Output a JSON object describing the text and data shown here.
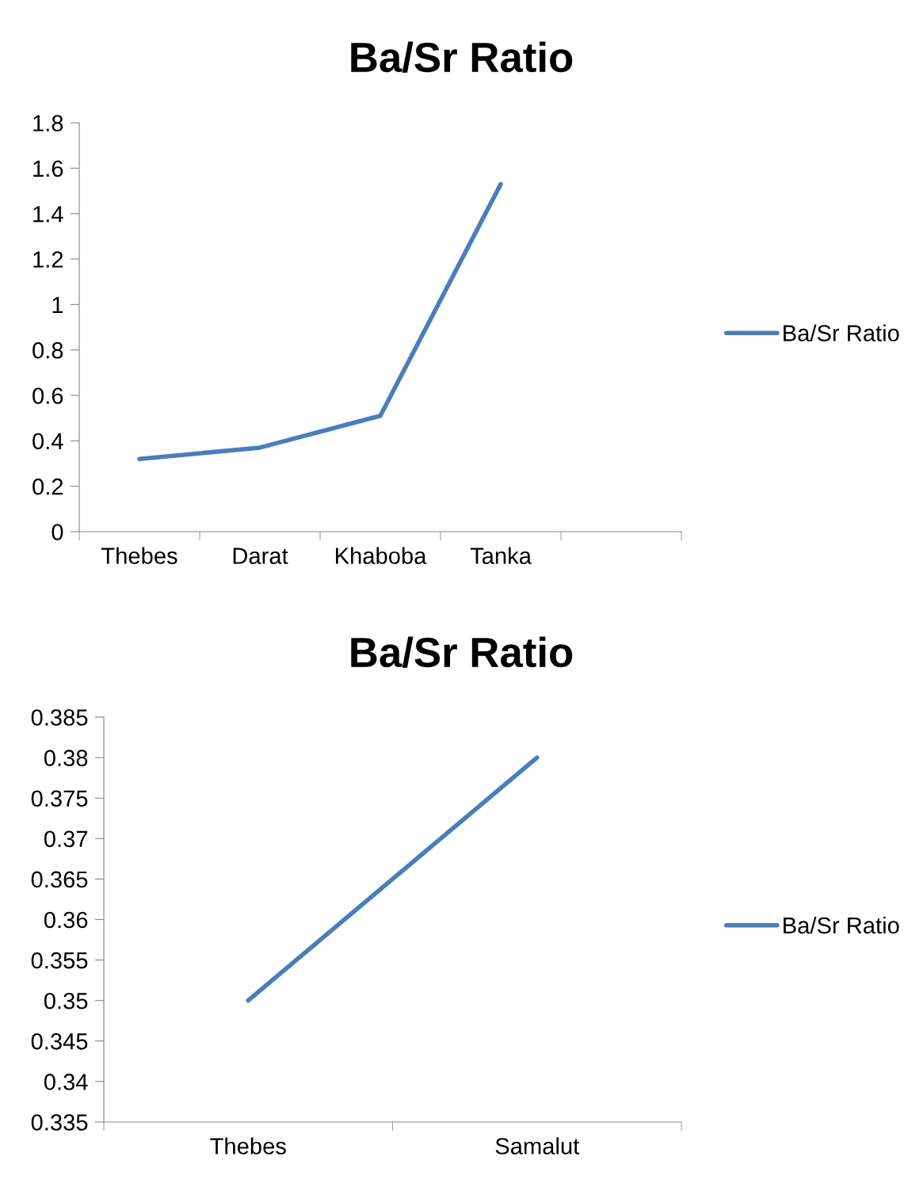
{
  "chart_data": [
    {
      "type": "line",
      "title": "Ba/Sr Ratio",
      "categories": [
        "Thebes",
        "Darat",
        "Khaboba",
        "Tanka",
        null
      ],
      "series": [
        {
          "name": "Ba/Sr Ratio",
          "color": "#4a7ebb",
          "values": [
            0.32,
            0.37,
            0.51,
            1.53,
            null
          ]
        }
      ],
      "ylim": [
        0,
        1.8
      ],
      "yticks": [
        0,
        0.2,
        0.4,
        0.6,
        0.8,
        1,
        1.2,
        1.4,
        1.6,
        1.8
      ],
      "grid": false,
      "legend": "right",
      "marker": "none",
      "line_style": "solid"
    },
    {
      "type": "line",
      "title": "Ba/Sr Ratio",
      "categories": [
        "Thebes",
        "Samalut"
      ],
      "series": [
        {
          "name": "Ba/Sr Ratio",
          "color": "#4a7ebb",
          "values": [
            0.35,
            0.38
          ]
        }
      ],
      "ylim": [
        0.335,
        0.385
      ],
      "yticks": [
        0.335,
        0.34,
        0.345,
        0.35,
        0.355,
        0.36,
        0.365,
        0.37,
        0.375,
        0.38,
        0.385
      ],
      "grid": false,
      "legend": "right",
      "marker": "none",
      "line_style": "solid"
    }
  ]
}
